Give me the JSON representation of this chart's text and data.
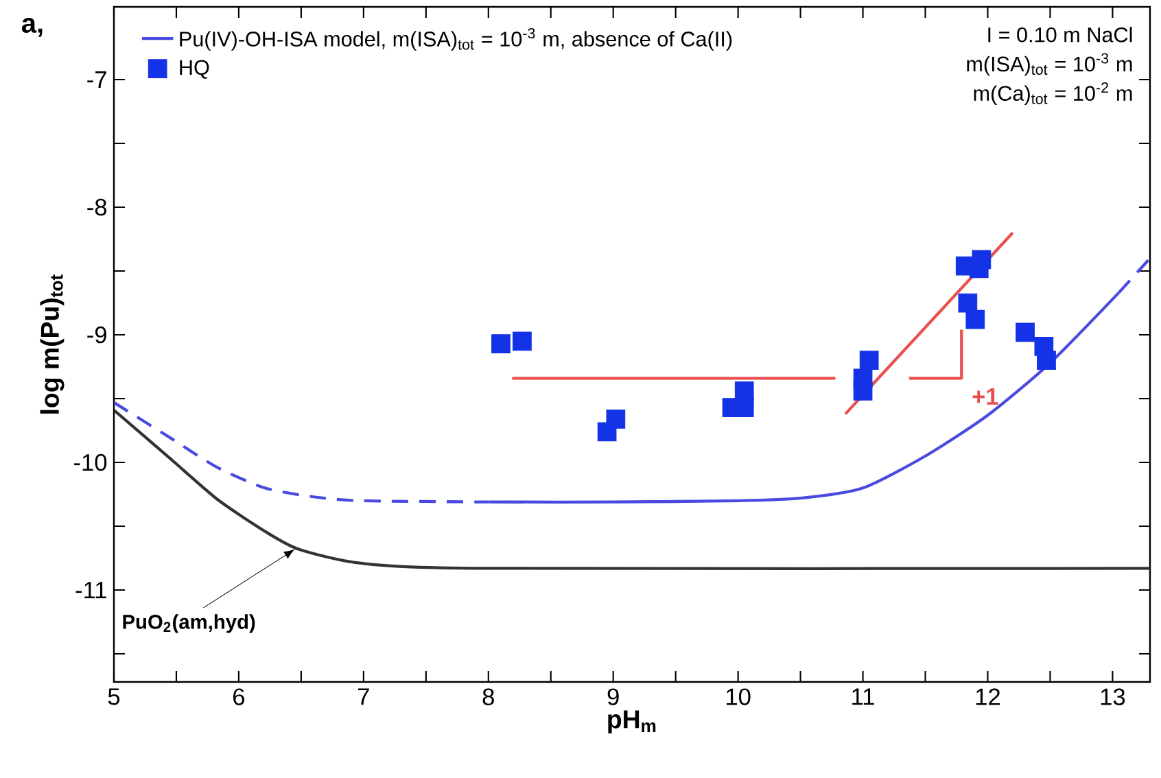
{
  "chart_data": {
    "type": "line",
    "xlabel": "pH$_{m}$",
    "ylabel": "log m(Pu)$_{tot}$",
    "xlim": [
      5,
      13.3
    ],
    "ylim": [
      -11.72,
      -6.43
    ],
    "xticks": [
      5,
      {
        "value": 5.5,
        "label": null
      },
      6,
      {
        "value": 6.5,
        "label": null
      },
      7,
      {
        "value": 7.5,
        "label": null
      },
      8,
      {
        "value": 8.5,
        "label": null
      },
      9,
      {
        "value": 9.5,
        "label": null
      },
      10,
      {
        "value": 10.5,
        "label": null
      },
      11,
      {
        "value": 11.5,
        "label": null
      },
      12,
      {
        "value": 12.5,
        "label": null
      },
      13
    ],
    "yticks": [
      {
        "value": -11.5,
        "label": null
      },
      -11,
      {
        "value": -10.5,
        "label": null
      },
      -10,
      {
        "value": -9.5,
        "label": null
      },
      -9,
      {
        "value": -8.5,
        "label": null
      },
      -8,
      {
        "value": -7.5,
        "label": null
      },
      -7
    ],
    "grid": false,
    "legend": "top left",
    "series": [
      {
        "color": "#333333",
        "line_style": "solid",
        "x": [
          5.0,
          5.44,
          5.83,
          6.21,
          6.48,
          6.98,
          8.0,
          13.3
        ],
        "values": [
          -9.59,
          -9.96,
          -10.29,
          -10.54,
          -10.68,
          -10.79,
          -10.83,
          -10.83
        ]
      },
      {
        "color": "#4a4ae0",
        "line_style": "dashed",
        "x": [
          5.0,
          5.44,
          5.83,
          6.21,
          6.6,
          6.98,
          8.0
        ],
        "values": [
          -9.53,
          -9.8,
          -10.04,
          -10.2,
          -10.27,
          -10.3,
          -10.31
        ]
      },
      {
        "name": "Pu(IV)-OH-ISA model, m(ISA)$_{tot}$ = 10$^{-3}$ m, absence of Ca(II)",
        "color": "#4a4ae0",
        "line_style": "solid",
        "x": [
          8.0,
          9.0,
          10.0,
          10.5,
          11.0,
          11.5,
          12.0,
          12.5,
          13.05
        ],
        "values": [
          -10.31,
          -10.31,
          -10.3,
          -10.28,
          -10.2,
          -9.95,
          -9.63,
          -9.22,
          -8.67
        ]
      },
      {
        "color": "#4a4ae0",
        "line_style": "dashed",
        "x": [
          13.05,
          13.3
        ],
        "values": [
          -8.67,
          -8.4
        ]
      },
      {
        "color": "#e85050",
        "line_style": "solid",
        "x": [
          8.19,
          10.78
        ],
        "values": [
          -9.34,
          -9.34
        ]
      },
      {
        "color": "#e85050",
        "line_style": "solid",
        "x": [
          10.86,
          12.2
        ],
        "values": [
          -9.62,
          -8.2
        ]
      },
      {
        "color": "#e85050",
        "line_style": "solid",
        "x": [
          11.37,
          11.79,
          11.79
        ],
        "values": [
          -9.34,
          -9.34,
          -8.96
        ]
      },
      {
        "type": "scatter",
        "name": "HQ",
        "color": "#1432e6",
        "marker": "square",
        "x": [
          8.1,
          8.27,
          8.95,
          9.02,
          8.95,
          9.95,
          10.05,
          10.05,
          9.95,
          11.05,
          11.0,
          11.0,
          11.82,
          11.95,
          11.93,
          11.84,
          11.9,
          12.3,
          12.45,
          12.47
        ],
        "values": [
          -9.07,
          -9.05,
          null,
          -9.66,
          -9.76,
          null,
          -9.44,
          -9.57,
          -9.57,
          -9.2,
          -9.34,
          -9.44,
          -8.46,
          -8.41,
          -8.48,
          -8.75,
          -8.88,
          -8.98,
          -9.09,
          -9.2
        ]
      }
    ],
    "annotations": [
      "a,",
      "I = 0.10 m NaCl",
      "m(ISA)$_{tot}$ = 10$^{-3}$ m",
      "m(Ca)$_{tot}$ = 10$^{-2}$ m",
      {
        "text": "PuO$_{2}$(am,hyd)",
        "x": 6.45,
        "y": -10.68
      },
      {
        "text": "+1",
        "x": 11.79,
        "y": -9.34
      }
    ]
  }
}
